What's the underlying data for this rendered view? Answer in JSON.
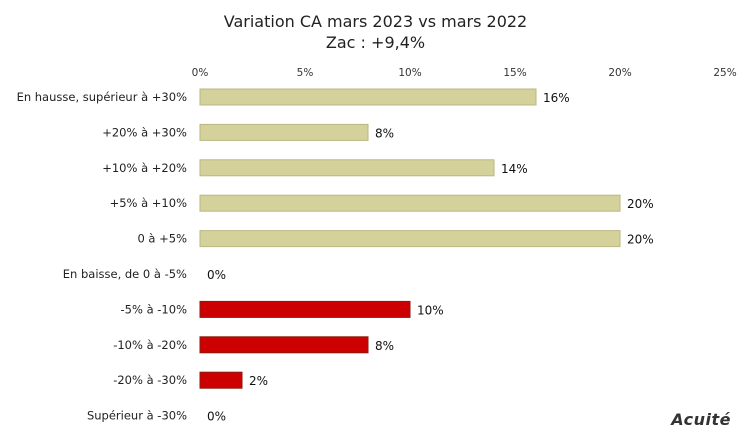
{
  "chart_data": {
    "type": "bar",
    "orientation": "horizontal",
    "title": "Variation CA mars 2023 vs mars 2022",
    "subtitle": "Zac : +9,4%",
    "categories": [
      "En hausse, supérieur à +30%",
      "+20% à +30%",
      "+10% à +20%",
      "+5% à +10%",
      "0 à +5%",
      "En baisse, de 0 à -5%",
      "-5% à -10%",
      "-10% à -20%",
      "-20% à -30%",
      "Supérieur à -30%"
    ],
    "values": [
      16,
      8,
      14,
      20,
      20,
      0,
      10,
      8,
      2,
      0
    ],
    "value_labels": [
      "16%",
      "8%",
      "14%",
      "20%",
      "20%",
      "0%",
      "10%",
      "8%",
      "2%",
      "0%"
    ],
    "bar_colors": [
      "#d4d29a",
      "#d4d29a",
      "#d4d29a",
      "#d4d29a",
      "#d4d29a",
      "#d4d29a",
      "#cc0000",
      "#cc0000",
      "#cc0000",
      "#cc0000"
    ],
    "xlim": [
      0,
      25
    ],
    "x_ticks": [
      0,
      5,
      10,
      15,
      20,
      25
    ],
    "x_tick_labels": [
      "0%",
      "5%",
      "10%",
      "15%",
      "20%",
      "25%"
    ],
    "axis_position": "top",
    "grid": false,
    "legend": "none"
  },
  "logo": "Acuité"
}
